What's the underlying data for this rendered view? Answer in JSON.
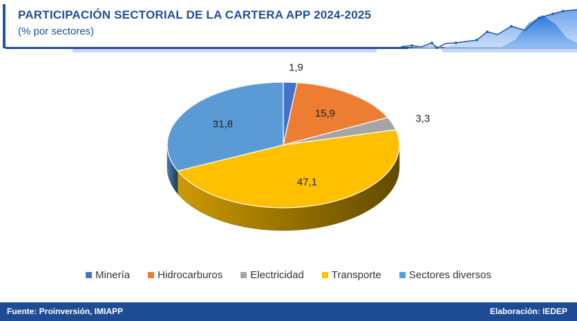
{
  "header": {
    "title": "PARTICIPACIÓN SECTORIAL DE LA CARTERA APP 2024-2025",
    "subtitle": "(% por sectores)"
  },
  "chart_data": {
    "type": "pie",
    "title": "PARTICIPACIÓN SECTORIAL DE LA CARTERA APP 2024-2025",
    "subtitle": "(% por sectores)",
    "unit": "%",
    "categories": [
      "Minería",
      "Hidrocarburos",
      "Electricidad",
      "Transporte",
      "Sectores diversos"
    ],
    "values": [
      1.9,
      15.9,
      3.3,
      47.1,
      31.8
    ],
    "labels": [
      "1,9",
      "15,9",
      "3,3",
      "47,1",
      "31,8"
    ],
    "colors": [
      "#4472c4",
      "#ed7d31",
      "#a5a5a5",
      "#ffc000",
      "#5b9bd5"
    ],
    "style": "3d",
    "legend_position": "bottom"
  },
  "footer": {
    "source": "Fuente: Proinversión, IMIAPP",
    "credit": "Elaboración: IEDEP"
  }
}
